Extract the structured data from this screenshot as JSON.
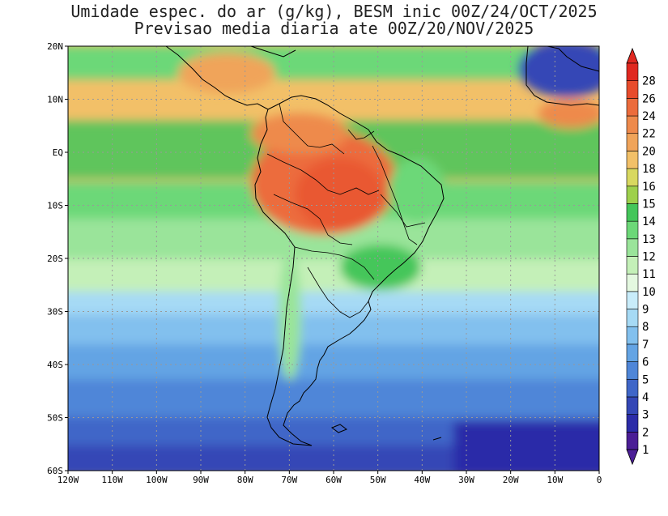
{
  "title": {
    "line1": "Umidade espec. do ar (g/kg), BESM inic 00Z/24/OCT/2025",
    "line2": "Previsao media diaria ate 00Z/20/NOV/2025"
  },
  "map": {
    "lon_range": [
      -120,
      0
    ],
    "lat_range": [
      -60,
      20
    ],
    "lon_ticks": [
      "120W",
      "110W",
      "100W",
      "90W",
      "80W",
      "70W",
      "60W",
      "50W",
      "40W",
      "30W",
      "20W",
      "10W",
      "0"
    ],
    "lat_ticks": [
      "20N",
      "10N",
      "EQ",
      "10S",
      "20S",
      "30S",
      "40S",
      "50S",
      "60S"
    ],
    "grid": "dotted"
  },
  "colorbar": {
    "levels": [
      "1",
      "2",
      "3",
      "4",
      "5",
      "6",
      "7",
      "8",
      "9",
      "10",
      "11",
      "12",
      "13",
      "14",
      "15",
      "16",
      "18",
      "20",
      "22",
      "24",
      "26",
      "28"
    ],
    "colors": [
      "#4b1e96",
      "#2c2ca8",
      "#3447b6",
      "#3f66c8",
      "#4f86d8",
      "#64a4e4",
      "#82c0ee",
      "#a6daf5",
      "#c8ecfa",
      "#e4f8e0",
      "#c4f0b8",
      "#9ae49a",
      "#6cd878",
      "#44c65a",
      "#9ed04c",
      "#d8d860",
      "#f2c068",
      "#f0a45a",
      "#ee8a4c",
      "#ec6c3c",
      "#e84c2c",
      "#e02820"
    ]
  }
}
